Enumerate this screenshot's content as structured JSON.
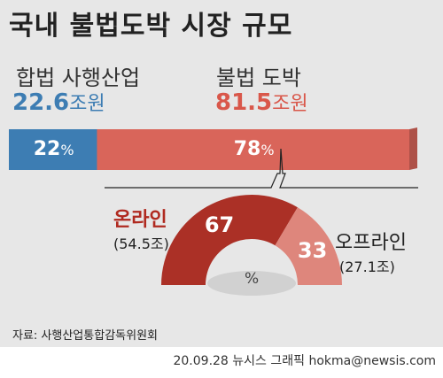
{
  "title": "국내 불법도박 시장 규모",
  "source": "자료: 사행산업통합감독위원회",
  "credit": "20.09.28 뉴시스 그래픽 hokma@newsis.com",
  "colors": {
    "legal": "#3d7db3",
    "illegal": "#d9655a",
    "online": "#ab3026",
    "offline": "#de867c",
    "background": "#e7e7e7"
  },
  "chart_data": [
    {
      "type": "bar",
      "title": "",
      "categories": [
        "합법 사행산업",
        "불법 도박"
      ],
      "amounts": [
        "22.6",
        "81.5"
      ],
      "amount_unit": "조원",
      "values": [
        22,
        78
      ],
      "value_labels": [
        "22",
        "78"
      ],
      "percent_sign": "%",
      "stacked": true,
      "orientation": "horizontal"
    },
    {
      "type": "pie",
      "style": "half-donut",
      "categories": [
        "온라인",
        "오프라인"
      ],
      "amounts": [
        "(54.5조)",
        "(27.1조)"
      ],
      "values": [
        67,
        33
      ],
      "value_labels": [
        "67",
        "33"
      ],
      "percent_sign": "%"
    }
  ]
}
